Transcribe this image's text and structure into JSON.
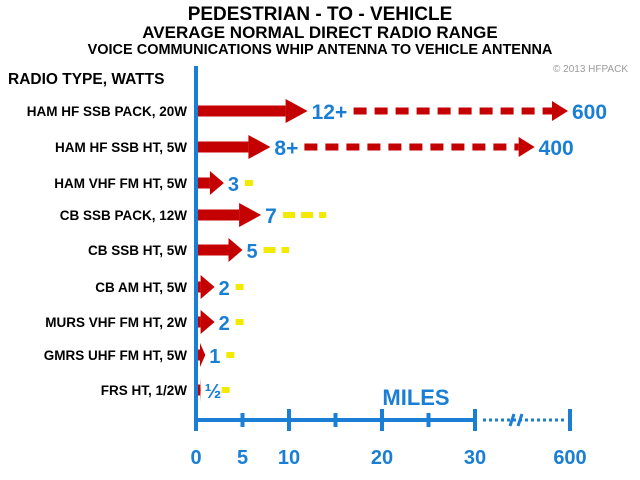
{
  "header": {
    "title": "PEDESTRIAN - TO - VEHICLE",
    "subtitle": "AVERAGE NORMAL DIRECT RADIO RANGE",
    "subtitle2": "VOICE COMMUNICATIONS WHIP ANTENNA TO VEHICLE ANTENNA",
    "copyright": "© 2013 HFPACK"
  },
  "colors": {
    "axis": "#1a7fd4",
    "arrow": "#c40000",
    "extension": "#f2ea00",
    "value_text": "#1a7fd4",
    "label_text": "#000000"
  },
  "chart_data": {
    "type": "bar",
    "title": "PEDESTRIAN - TO - VEHICLE",
    "ylabel": "RADIO TYPE, WATTS",
    "xlabel": "MILES",
    "x_ticks": [
      "0",
      "5",
      "10",
      "20",
      "30",
      "600"
    ],
    "categories": [
      "HAM HF SSB PACK, 20W",
      "HAM HF SSB HT, 5W",
      "HAM VHF FM HT, 5W",
      "CB SSB PACK, 12W",
      "CB SSB HT, 5W",
      "CB AM HT, 5W",
      "MURS VHF FM HT, 2W",
      "GMRS UHF FM HT, 5W",
      "FRS HT, 1/2W"
    ],
    "values": [
      12,
      8,
      3,
      7,
      5,
      2,
      2,
      1,
      0.5
    ],
    "value_labels": [
      "12+",
      "8+",
      "3",
      "7",
      "5",
      "2",
      "2",
      "1",
      "½"
    ],
    "extended_range": [
      600,
      400,
      5,
      14,
      10,
      4,
      4,
      3,
      3
    ],
    "extended_labels": [
      "600",
      "400",
      "",
      "",
      "",
      "",
      "",
      "",
      ""
    ],
    "xlim": [
      0,
      600
    ]
  }
}
